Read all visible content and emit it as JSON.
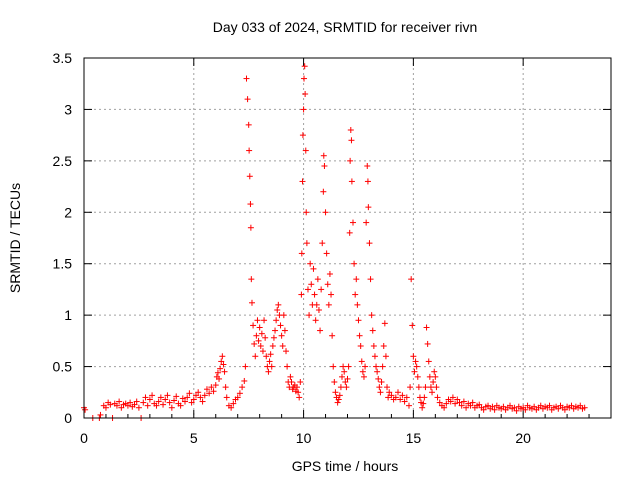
{
  "chart_data": {
    "type": "scatter",
    "title": "Day 033 of 2024, SRMTID for receiver rivn",
    "xlabel": "GPS time / hours",
    "ylabel": "SRMTID / TECUs",
    "xlim": [
      0,
      24
    ],
    "ylim": [
      0,
      3.5
    ],
    "x_ticks": [
      0,
      5,
      10,
      15,
      20
    ],
    "x_tick_labels": [
      "0",
      "5",
      "10",
      "15",
      "20"
    ],
    "y_ticks": [
      0,
      0.5,
      1,
      1.5,
      2,
      2.5,
      3,
      3.5
    ],
    "y_tick_labels": [
      "0",
      "0.5",
      "1",
      "1.5",
      "2",
      "2.5",
      "3",
      "3.5"
    ],
    "grid": true,
    "marker": "+",
    "series": [
      {
        "name": "SRMTID",
        "color": "#ff0000",
        "points": [
          [
            0.0,
            0.1
          ],
          [
            0.05,
            0.08
          ],
          [
            0.4,
            0.0
          ],
          [
            0.7,
            0.0
          ],
          [
            0.75,
            0.03
          ],
          [
            0.9,
            0.12
          ],
          [
            1.0,
            0.1
          ],
          [
            1.1,
            0.15
          ],
          [
            1.2,
            0.13
          ],
          [
            1.3,
            0.0
          ],
          [
            1.4,
            0.14
          ],
          [
            1.5,
            0.12
          ],
          [
            1.6,
            0.16
          ],
          [
            1.7,
            0.1
          ],
          [
            1.8,
            0.13
          ],
          [
            1.9,
            0.14
          ],
          [
            2.0,
            0.12
          ],
          [
            2.1,
            0.15
          ],
          [
            2.2,
            0.11
          ],
          [
            2.3,
            0.13
          ],
          [
            2.4,
            0.16
          ],
          [
            2.5,
            0.1
          ],
          [
            2.6,
            0.0
          ],
          [
            2.7,
            0.15
          ],
          [
            2.8,
            0.2
          ],
          [
            2.9,
            0.12
          ],
          [
            3.0,
            0.18
          ],
          [
            3.1,
            0.22
          ],
          [
            3.2,
            0.14
          ],
          [
            3.3,
            0.12
          ],
          [
            3.4,
            0.16
          ],
          [
            3.5,
            0.2
          ],
          [
            3.6,
            0.13
          ],
          [
            3.7,
            0.18
          ],
          [
            3.8,
            0.22
          ],
          [
            3.9,
            0.15
          ],
          [
            4.0,
            0.1
          ],
          [
            4.1,
            0.17
          ],
          [
            4.2,
            0.21
          ],
          [
            4.3,
            0.14
          ],
          [
            4.4,
            0.12
          ],
          [
            4.5,
            0.19
          ],
          [
            4.6,
            0.16
          ],
          [
            4.7,
            0.2
          ],
          [
            4.8,
            0.24
          ],
          [
            4.9,
            0.15
          ],
          [
            5.0,
            0.18
          ],
          [
            5.1,
            0.22
          ],
          [
            5.2,
            0.25
          ],
          [
            5.3,
            0.2
          ],
          [
            5.4,
            0.16
          ],
          [
            5.5,
            0.22
          ],
          [
            5.6,
            0.28
          ],
          [
            5.7,
            0.24
          ],
          [
            5.8,
            0.3
          ],
          [
            5.9,
            0.26
          ],
          [
            6.0,
            0.32
          ],
          [
            6.05,
            0.4
          ],
          [
            6.1,
            0.44
          ],
          [
            6.15,
            0.38
          ],
          [
            6.2,
            0.48
          ],
          [
            6.25,
            0.55
          ],
          [
            6.3,
            0.6
          ],
          [
            6.35,
            0.52
          ],
          [
            6.4,
            0.45
          ],
          [
            6.45,
            0.3
          ],
          [
            6.5,
            0.2
          ],
          [
            6.6,
            0.12
          ],
          [
            6.7,
            0.1
          ],
          [
            6.8,
            0.14
          ],
          [
            6.9,
            0.18
          ],
          [
            7.0,
            0.2
          ],
          [
            7.1,
            0.24
          ],
          [
            7.2,
            0.3
          ],
          [
            7.3,
            0.36
          ],
          [
            7.35,
            0.5
          ],
          [
            7.4,
            3.3
          ],
          [
            7.45,
            3.1
          ],
          [
            7.5,
            2.85
          ],
          [
            7.52,
            2.6
          ],
          [
            7.55,
            2.35
          ],
          [
            7.58,
            2.08
          ],
          [
            7.6,
            1.85
          ],
          [
            7.62,
            1.35
          ],
          [
            7.65,
            1.12
          ],
          [
            7.7,
            0.9
          ],
          [
            7.75,
            0.72
          ],
          [
            7.8,
            0.6
          ],
          [
            7.85,
            0.8
          ],
          [
            7.9,
            0.95
          ],
          [
            7.95,
            0.75
          ],
          [
            8.0,
            0.88
          ],
          [
            8.05,
            0.7
          ],
          [
            8.1,
            0.82
          ],
          [
            8.15,
            0.65
          ],
          [
            8.2,
            0.95
          ],
          [
            8.25,
            0.78
          ],
          [
            8.3,
            0.6
          ],
          [
            8.35,
            0.5
          ],
          [
            8.4,
            0.45
          ],
          [
            8.45,
            0.55
          ],
          [
            8.5,
            0.62
          ],
          [
            8.55,
            0.5
          ],
          [
            8.6,
            0.7
          ],
          [
            8.65,
            0.78
          ],
          [
            8.7,
            0.85
          ],
          [
            8.75,
            0.95
          ],
          [
            8.8,
            1.05
          ],
          [
            8.85,
            1.1
          ],
          [
            8.9,
            1.0
          ],
          [
            8.95,
            0.9
          ],
          [
            9.0,
            0.8
          ],
          [
            9.05,
            0.7
          ],
          [
            9.1,
            1.0
          ],
          [
            9.15,
            0.85
          ],
          [
            9.2,
            0.65
          ],
          [
            9.25,
            0.5
          ],
          [
            9.3,
            0.35
          ],
          [
            9.35,
            0.3
          ],
          [
            9.4,
            0.4
          ],
          [
            9.45,
            0.35
          ],
          [
            9.5,
            0.28
          ],
          [
            9.55,
            0.3
          ],
          [
            9.6,
            0.32
          ],
          [
            9.65,
            0.26
          ],
          [
            9.7,
            0.3
          ],
          [
            9.75,
            0.25
          ],
          [
            9.8,
            0.2
          ],
          [
            9.85,
            0.35
          ],
          [
            9.9,
            1.2
          ],
          [
            9.92,
            1.6
          ],
          [
            9.95,
            2.3
          ],
          [
            9.97,
            2.75
          ],
          [
            10.0,
            3.0
          ],
          [
            10.02,
            3.3
          ],
          [
            10.05,
            3.42
          ],
          [
            10.07,
            3.15
          ],
          [
            10.1,
            2.6
          ],
          [
            10.12,
            2.0
          ],
          [
            10.15,
            1.7
          ],
          [
            10.2,
            1.25
          ],
          [
            10.25,
            1.0
          ],
          [
            10.3,
            1.5
          ],
          [
            10.35,
            1.3
          ],
          [
            10.4,
            1.1
          ],
          [
            10.45,
            1.45
          ],
          [
            10.5,
            1.2
          ],
          [
            10.55,
            0.95
          ],
          [
            10.6,
            1.1
          ],
          [
            10.65,
            1.35
          ],
          [
            10.7,
            1.05
          ],
          [
            10.75,
            0.85
          ],
          [
            10.8,
            1.25
          ],
          [
            10.85,
            1.7
          ],
          [
            10.9,
            2.2
          ],
          [
            10.92,
            2.55
          ],
          [
            10.95,
            2.45
          ],
          [
            11.0,
            2.0
          ],
          [
            11.05,
            1.6
          ],
          [
            11.1,
            1.3
          ],
          [
            11.15,
            1.1
          ],
          [
            11.2,
            1.4
          ],
          [
            11.25,
            1.2
          ],
          [
            11.3,
            0.8
          ],
          [
            11.35,
            0.5
          ],
          [
            11.4,
            0.35
          ],
          [
            11.45,
            0.25
          ],
          [
            11.5,
            0.2
          ],
          [
            11.55,
            0.15
          ],
          [
            11.6,
            0.18
          ],
          [
            11.65,
            0.22
          ],
          [
            11.7,
            0.3
          ],
          [
            11.75,
            0.4
          ],
          [
            11.8,
            0.5
          ],
          [
            11.85,
            0.45
          ],
          [
            11.9,
            0.35
          ],
          [
            11.95,
            0.3
          ],
          [
            12.0,
            0.38
          ],
          [
            12.05,
            0.5
          ],
          [
            12.1,
            1.8
          ],
          [
            12.12,
            2.5
          ],
          [
            12.15,
            2.8
          ],
          [
            12.18,
            2.7
          ],
          [
            12.2,
            2.3
          ],
          [
            12.25,
            1.9
          ],
          [
            12.3,
            1.5
          ],
          [
            12.35,
            1.2
          ],
          [
            12.4,
            1.35
          ],
          [
            12.45,
            1.1
          ],
          [
            12.5,
            0.95
          ],
          [
            12.55,
            0.8
          ],
          [
            12.6,
            0.7
          ],
          [
            12.65,
            0.55
          ],
          [
            12.7,
            0.45
          ],
          [
            12.75,
            0.4
          ],
          [
            12.8,
            0.5
          ],
          [
            12.85,
            1.9
          ],
          [
            12.9,
            2.45
          ],
          [
            12.93,
            2.3
          ],
          [
            12.95,
            2.05
          ],
          [
            13.0,
            1.7
          ],
          [
            13.05,
            1.35
          ],
          [
            13.1,
            1.0
          ],
          [
            13.15,
            0.85
          ],
          [
            13.2,
            0.7
          ],
          [
            13.25,
            0.6
          ],
          [
            13.3,
            0.5
          ],
          [
            13.35,
            0.45
          ],
          [
            13.4,
            0.38
          ],
          [
            13.45,
            0.3
          ],
          [
            13.5,
            0.25
          ],
          [
            13.55,
            0.35
          ],
          [
            13.6,
            0.5
          ],
          [
            13.65,
            0.7
          ],
          [
            13.7,
            0.92
          ],
          [
            13.75,
            0.6
          ],
          [
            13.8,
            0.3
          ],
          [
            13.85,
            0.2
          ],
          [
            13.9,
            0.25
          ],
          [
            14.0,
            0.22
          ],
          [
            14.1,
            0.18
          ],
          [
            14.2,
            0.2
          ],
          [
            14.3,
            0.25
          ],
          [
            14.4,
            0.18
          ],
          [
            14.5,
            0.22
          ],
          [
            14.6,
            0.16
          ],
          [
            14.7,
            0.2
          ],
          [
            14.8,
            0.12
          ],
          [
            14.85,
            0.3
          ],
          [
            14.9,
            1.35
          ],
          [
            14.95,
            0.9
          ],
          [
            15.0,
            0.6
          ],
          [
            15.05,
            0.45
          ],
          [
            15.1,
            0.55
          ],
          [
            15.15,
            0.5
          ],
          [
            15.2,
            0.4
          ],
          [
            15.25,
            0.3
          ],
          [
            15.3,
            0.2
          ],
          [
            15.35,
            0.15
          ],
          [
            15.4,
            0.1
          ],
          [
            15.45,
            0.14
          ],
          [
            15.5,
            0.2
          ],
          [
            15.55,
            0.3
          ],
          [
            15.6,
            0.88
          ],
          [
            15.65,
            0.72
          ],
          [
            15.7,
            0.55
          ],
          [
            15.75,
            0.4
          ],
          [
            15.8,
            0.3
          ],
          [
            15.85,
            0.25
          ],
          [
            15.9,
            0.35
          ],
          [
            15.95,
            0.45
          ],
          [
            16.0,
            0.4
          ],
          [
            16.05,
            0.3
          ],
          [
            16.1,
            0.2
          ],
          [
            16.2,
            0.15
          ],
          [
            16.3,
            0.12
          ],
          [
            16.4,
            0.1
          ],
          [
            16.5,
            0.14
          ],
          [
            16.6,
            0.18
          ],
          [
            16.7,
            0.16
          ],
          [
            16.8,
            0.2
          ],
          [
            16.9,
            0.14
          ],
          [
            17.0,
            0.18
          ],
          [
            17.1,
            0.15
          ],
          [
            17.2,
            0.12
          ],
          [
            17.3,
            0.16
          ],
          [
            17.4,
            0.1
          ],
          [
            17.5,
            0.14
          ],
          [
            17.6,
            0.12
          ],
          [
            17.7,
            0.15
          ],
          [
            17.8,
            0.1
          ],
          [
            17.9,
            0.12
          ],
          [
            18.0,
            0.13
          ],
          [
            18.1,
            0.1
          ],
          [
            18.2,
            0.08
          ],
          [
            18.3,
            0.11
          ],
          [
            18.4,
            0.12
          ],
          [
            18.5,
            0.09
          ],
          [
            18.6,
            0.11
          ],
          [
            18.7,
            0.08
          ],
          [
            18.8,
            0.12
          ],
          [
            18.9,
            0.1
          ],
          [
            19.0,
            0.09
          ],
          [
            19.1,
            0.11
          ],
          [
            19.2,
            0.08
          ],
          [
            19.3,
            0.1
          ],
          [
            19.4,
            0.12
          ],
          [
            19.5,
            0.09
          ],
          [
            19.6,
            0.1
          ],
          [
            19.7,
            0.07
          ],
          [
            19.8,
            0.11
          ],
          [
            19.9,
            0.09
          ],
          [
            20.0,
            0.1
          ],
          [
            20.1,
            0.08
          ],
          [
            20.2,
            0.12
          ],
          [
            20.3,
            0.1
          ],
          [
            20.4,
            0.09
          ],
          [
            20.5,
            0.11
          ],
          [
            20.6,
            0.08
          ],
          [
            20.7,
            0.1
          ],
          [
            20.8,
            0.12
          ],
          [
            20.9,
            0.09
          ],
          [
            21.0,
            0.11
          ],
          [
            21.1,
            0.1
          ],
          [
            21.2,
            0.12
          ],
          [
            21.3,
            0.08
          ],
          [
            21.4,
            0.1
          ],
          [
            21.5,
            0.11
          ],
          [
            21.6,
            0.09
          ],
          [
            21.7,
            0.12
          ],
          [
            21.8,
            0.1
          ],
          [
            21.9,
            0.08
          ],
          [
            22.0,
            0.11
          ],
          [
            22.1,
            0.1
          ],
          [
            22.2,
            0.12
          ],
          [
            22.3,
            0.09
          ],
          [
            22.4,
            0.11
          ],
          [
            22.5,
            0.1
          ],
          [
            22.6,
            0.12
          ],
          [
            22.7,
            0.09
          ],
          [
            22.8,
            0.1
          ]
        ]
      }
    ]
  }
}
